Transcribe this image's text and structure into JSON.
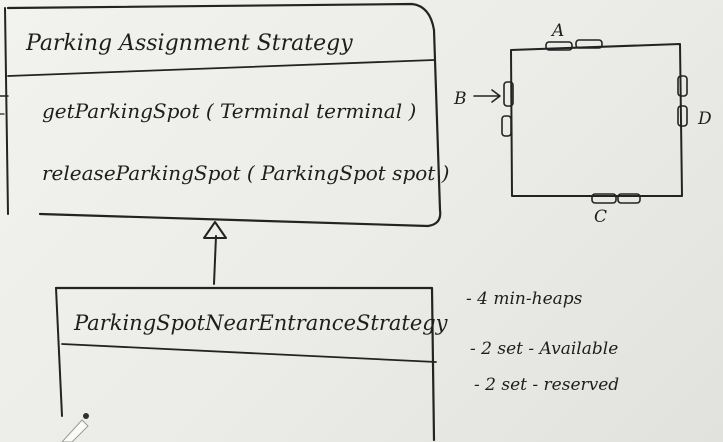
{
  "classes": {
    "parent": {
      "name": "Parking Assignment Strategy",
      "methods": [
        "getParkingSpot ( Terminal terminal )",
        "releaseParkingSpot ( ParkingSpot spot )"
      ]
    },
    "child": {
      "name": "ParkingSpotNearEntranceStrategy"
    }
  },
  "relationship": "inheritance",
  "layout_sketch": {
    "entrance_labels": [
      "A",
      "B",
      "C",
      "D"
    ]
  },
  "notes": [
    "- 4 min-heaps",
    "- 2 set - Available",
    "- 2 set - reserved"
  ],
  "colors": {
    "ink": "#232323",
    "board": "#efefec"
  }
}
